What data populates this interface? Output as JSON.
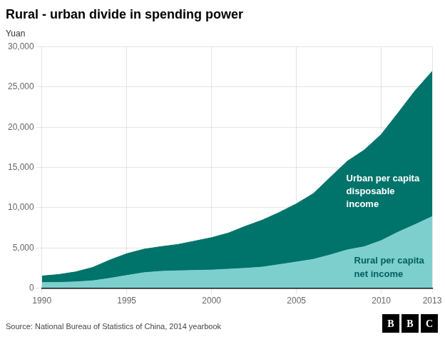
{
  "chart_data": {
    "type": "area",
    "title": "Rural - urban divide in spending power",
    "ylabel": "Yuan",
    "source": "Source: National Bureau of Statistics of China, 2014 yearbook",
    "logo": "BBC",
    "x": [
      1990,
      1991,
      1992,
      1993,
      1994,
      1995,
      1996,
      1997,
      1998,
      1999,
      2000,
      2001,
      2002,
      2003,
      2004,
      2005,
      2006,
      2007,
      2008,
      2009,
      2010,
      2011,
      2012,
      2013
    ],
    "series": [
      {
        "name": "Rural per capita\nnet income",
        "color": "#7dcfce",
        "values": [
          686,
          708,
          784,
          921,
          1221,
          1578,
          1926,
          2090,
          2162,
          2210,
          2253,
          2366,
          2476,
          2622,
          2936,
          3255,
          3587,
          4140,
          4761,
          5153,
          5919,
          6977,
          7917,
          8896
        ]
      },
      {
        "name": "Urban per capita\ndisposable\nincome",
        "color": "#00736b",
        "values": [
          1510,
          1701,
          2027,
          2577,
          3496,
          4283,
          4839,
          5160,
          5425,
          5854,
          6280,
          6860,
          7703,
          8472,
          9422,
          10493,
          11759,
          13786,
          15781,
          17175,
          19109,
          21810,
          24565,
          26955
        ]
      }
    ],
    "xlim": [
      1990,
      2013
    ],
    "xticks": [
      1990,
      1995,
      2000,
      2005,
      2010,
      2013
    ],
    "ylim": [
      0,
      30000
    ],
    "yticks": [
      0,
      {
        "value": 5000,
        "label": "5,000"
      },
      {
        "value": 10000,
        "label": "10,000"
      },
      {
        "value": 15000,
        "label": "15,000"
      },
      {
        "value": 20000,
        "label": "20,000"
      },
      {
        "value": 25000,
        "label": "25,000"
      },
      {
        "value": 30000,
        "label": "30,000"
      }
    ],
    "grid": true
  }
}
